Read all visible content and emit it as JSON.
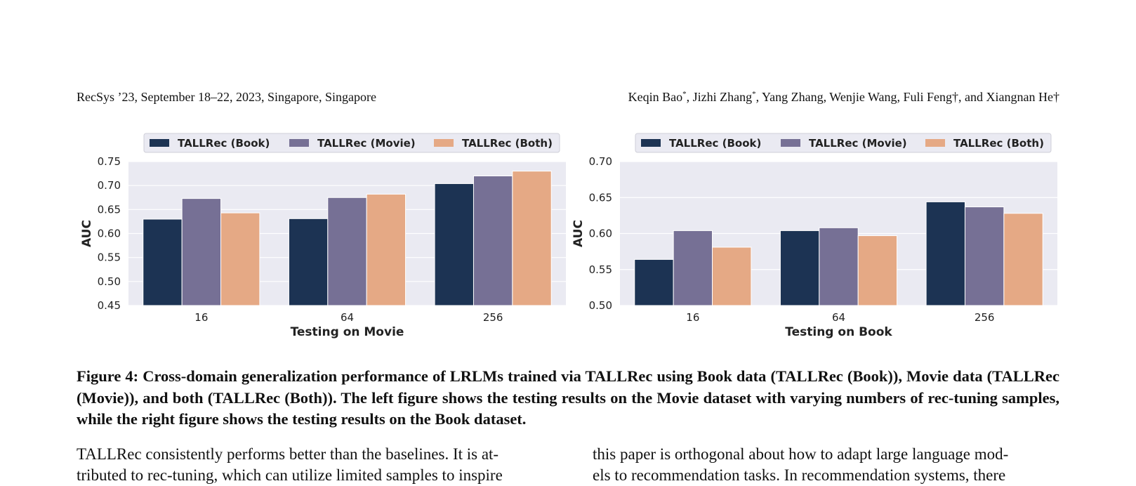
{
  "header": {
    "left": "RecSys ’23, September 18–22, 2023, Singapore, Singapore",
    "right_parts": [
      "Keqin Bao",
      "*",
      ", Jizhi Zhang",
      "*",
      ", Yang Zhang, Wenjie Wang, Fuli Feng†, and Xiangnan He†"
    ]
  },
  "colors": {
    "book": "#1c3353",
    "movie": "#767095",
    "both": "#e5a985",
    "plot_bg": "#eaeaf2"
  },
  "chart_data": [
    {
      "type": "bar",
      "categories": [
        "16",
        "64",
        "256"
      ],
      "series": [
        {
          "name": "TALLRec (Book)",
          "values": [
            0.63,
            0.631,
            0.704
          ]
        },
        {
          "name": "TALLRec (Movie)",
          "values": [
            0.673,
            0.675,
            0.72
          ]
        },
        {
          "name": "TALLRec (Both)",
          "values": [
            0.643,
            0.682,
            0.73
          ]
        }
      ],
      "xlabel": "Testing on Movie",
      "ylabel": "AUC",
      "ylim": [
        0.45,
        0.75
      ],
      "yticks": [
        "0.45",
        "0.50",
        "0.55",
        "0.60",
        "0.65",
        "0.70",
        "0.75"
      ],
      "legend_position": "top",
      "grid": true
    },
    {
      "type": "bar",
      "categories": [
        "16",
        "64",
        "256"
      ],
      "series": [
        {
          "name": "TALLRec (Book)",
          "values": [
            0.564,
            0.604,
            0.644
          ]
        },
        {
          "name": "TALLRec (Movie)",
          "values": [
            0.604,
            0.608,
            0.637
          ]
        },
        {
          "name": "TALLRec (Both)",
          "values": [
            0.581,
            0.597,
            0.628
          ]
        }
      ],
      "xlabel": "Testing on Book",
      "ylabel": "AUC",
      "ylim": [
        0.5,
        0.7
      ],
      "yticks": [
        "0.50",
        "0.55",
        "0.60",
        "0.65",
        "0.70"
      ],
      "legend_position": "top",
      "grid": true
    }
  ],
  "caption": "Figure 4: Cross-domain generalization performance of LRLMs trained via TALLRec using Book data (TALLRec (Book)), Movie data (TALLRec (Movie)), and both (TALLRec (Both)). The left figure shows the testing results on the Movie dataset with varying numbers of rec-tuning samples, while the right figure shows the testing results on the Book dataset.",
  "body": {
    "left_lines": [
      "TALLRec consistently performs better than the baselines. It is at-",
      "tributed to rec-tuning, which can utilize limited samples to inspire"
    ],
    "right_lines": [
      "this paper is orthogonal about how to adapt large language mod-",
      "els to recommendation tasks. In recommendation systems, there"
    ]
  }
}
